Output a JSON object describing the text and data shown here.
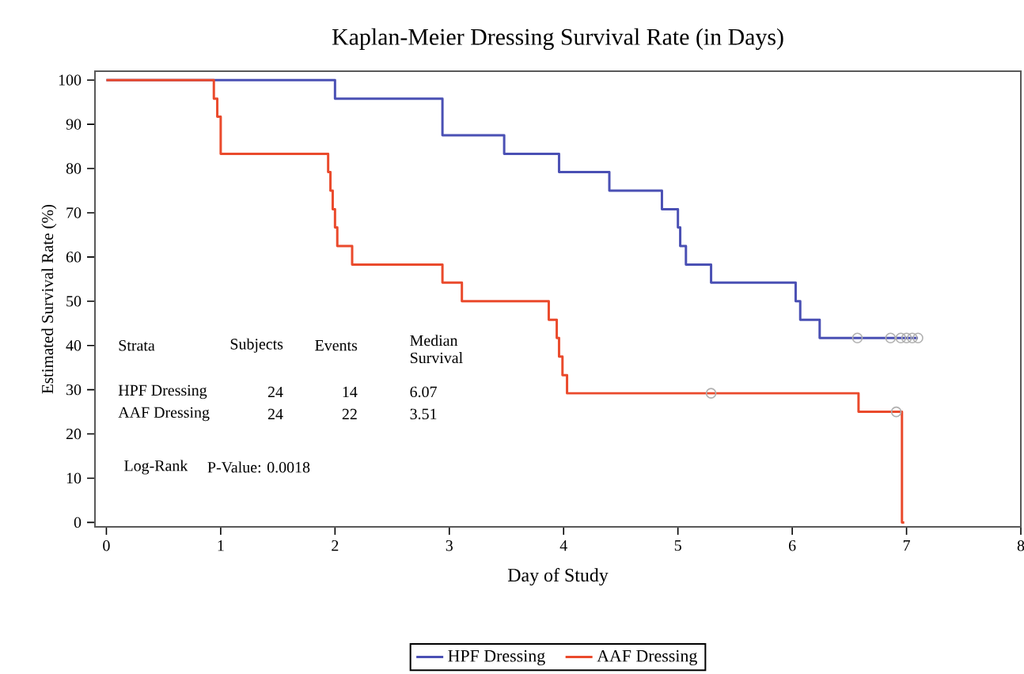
{
  "chart_data": {
    "type": "step",
    "title": "Kaplan-Meier Dressing Survival Rate (in Days)",
    "xlabel": "Day of Study",
    "ylabel": "Estimated Survival Rate (%)",
    "xlim": [
      -0.1,
      8
    ],
    "ylim": [
      -1,
      102
    ],
    "xticks": [
      0,
      1,
      2,
      3,
      4,
      5,
      6,
      7,
      8
    ],
    "yticks": [
      0,
      10,
      20,
      30,
      40,
      50,
      60,
      70,
      80,
      90,
      100
    ],
    "legend": "bottom",
    "grid": false,
    "line_style": "solid",
    "series": [
      {
        "name": "HPF Dressing",
        "color": "#4a50b4",
        "x": [
          0,
          2.0,
          2.94,
          3.48,
          3.96,
          4.4,
          4.86,
          5.0,
          5.02,
          5.07,
          5.29,
          6.03,
          6.07,
          6.24,
          7.1
        ],
        "values": [
          100,
          95.8,
          87.5,
          83.3,
          79.2,
          75,
          70.8,
          66.7,
          62.5,
          58.3,
          54.2,
          50,
          45.8,
          41.7,
          41.7
        ]
      },
      {
        "name": "AAF Dressing",
        "color": "#ea4a2c",
        "x": [
          0,
          0.94,
          0.97,
          1.0,
          1.94,
          1.96,
          1.98,
          2.0,
          2.02,
          2.15,
          2.94,
          3.11,
          3.87,
          3.94,
          3.96,
          3.99,
          4.03,
          6.58,
          6.96,
          6.98
        ],
        "values": [
          100,
          95.8,
          91.7,
          83.3,
          79.2,
          75,
          70.8,
          66.7,
          62.5,
          58.3,
          54.2,
          50,
          45.8,
          41.7,
          37.5,
          33.3,
          29.2,
          25,
          0,
          0
        ]
      },
      {
        "type": "scatter",
        "marker": "circle",
        "color": "#b0b0b0",
        "x": [
          6.57,
          6.86,
          6.95,
          7.0,
          7.05,
          7.1
        ],
        "values": [
          41.7,
          41.7,
          41.7,
          41.7,
          41.7,
          41.7
        ]
      },
      {
        "type": "scatter",
        "marker": "circle",
        "color": "#b0b0b0",
        "x": [
          5.29,
          6.91
        ],
        "values": [
          29.2,
          25
        ]
      }
    ],
    "annotations": [
      "Strata",
      "Subjects",
      "Events",
      "Median Survival",
      "HPF Dressing",
      "24",
      "14",
      "6.07",
      "AAF Dressing",
      "24",
      "22",
      "3.51",
      "Log-Rank",
      "P-Value: 0.0018"
    ]
  }
}
